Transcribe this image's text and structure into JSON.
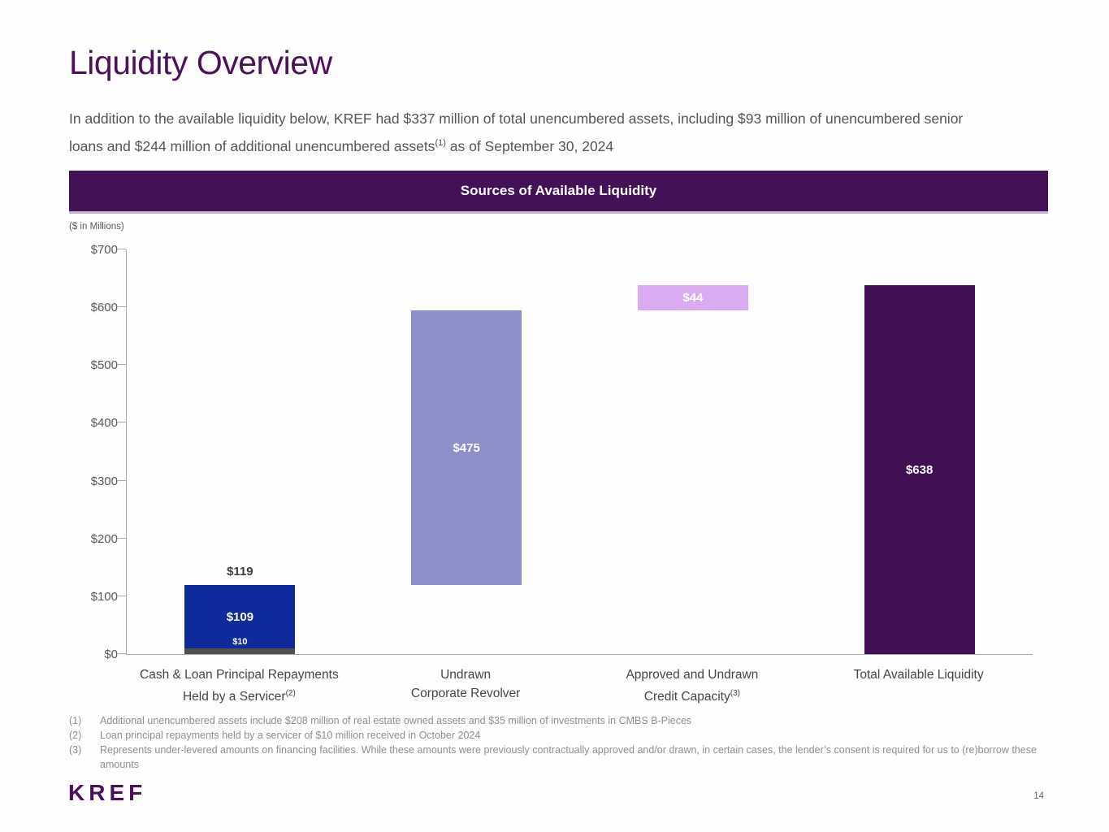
{
  "page": {
    "title": "Liquidity Overview",
    "intro": {
      "before_sup": "In addition to the available liquidity below, KREF had $337 million of total unencumbered assets, including $93 million of unencumbered senior loans and $244 million of additional unencumbered assets",
      "sup": "(1)",
      "after_sup": " as of September 30, 2024"
    },
    "logo_text": "KREF",
    "page_number": "14"
  },
  "colors": {
    "title": "#4b1257",
    "banner_background": "#431155",
    "banner_text": "#ffffff",
    "logo": "#4a1158"
  },
  "chart_data": {
    "type": "bar",
    "subtype": "stacked-waterfall",
    "title": "Sources of Available Liquidity",
    "units_label": "($ in Millions)",
    "ylim": [
      0,
      700
    ],
    "ytick_step": 100,
    "ytick_prefix": "$",
    "grid": false,
    "legend": "none",
    "categories": [
      {
        "line1": "Cash & Loan Principal Repayments",
        "line2": "Held by a Servicer",
        "sup": "(2)"
      },
      {
        "line1": "Undrawn",
        "line2": "Corporate Revolver",
        "sup": ""
      },
      {
        "line1": "Approved and Undrawn",
        "line2": "Credit Capacity",
        "sup": "(3)"
      },
      {
        "line1": "Total Available Liquidity",
        "line2": "",
        "sup": ""
      }
    ],
    "bars": [
      {
        "base": 0,
        "total_label": "$119",
        "segments": [
          {
            "value": 10,
            "label": "$10",
            "color": "#4f4f4f",
            "label_placement": "above_segment"
          },
          {
            "value": 109,
            "label": "$109",
            "color": "#0f2a9b",
            "label_placement": "center"
          }
        ]
      },
      {
        "base": 119,
        "total_label": "",
        "segments": [
          {
            "value": 475,
            "label": "$475",
            "color": "#8c90c9",
            "label_placement": "center"
          }
        ]
      },
      {
        "base": 594,
        "total_label": "",
        "segments": [
          {
            "value": 44,
            "label": "$44",
            "color": "#daabf0",
            "label_placement": "center"
          }
        ]
      },
      {
        "base": 0,
        "total_label": "",
        "segments": [
          {
            "value": 638,
            "label": "$638",
            "color": "#401052",
            "label_placement": "center"
          }
        ]
      }
    ]
  },
  "footnotes": [
    {
      "num": "(1)",
      "text": "Additional unencumbered assets include $208 million of real estate owned assets and $35 million of investments in CMBS B-Pieces"
    },
    {
      "num": "(2)",
      "text": "Loan principal repayments held by a servicer of $10 million received in October 2024"
    },
    {
      "num": "(3)",
      "text": "Represents under-levered amounts on financing facilities. While these amounts were previously contractually approved and/or drawn, in certain cases, the lender’s consent is required for us to (re)borrow these amounts"
    }
  ]
}
